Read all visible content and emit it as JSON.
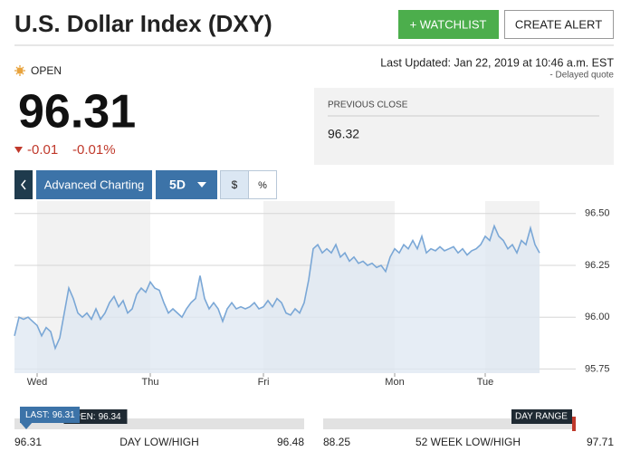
{
  "header": {
    "title": "U.S. Dollar Index (DXY)",
    "watchlist": "+ WATCHLIST",
    "alert": "CREATE ALERT"
  },
  "status": {
    "market": "OPEN",
    "updated": "Last Updated: Jan 22, 2019 at 10:46 a.m. EST",
    "delayed": "- Delayed quote"
  },
  "quote": {
    "price": 96.31,
    "change": -0.01,
    "change_percent": "-0.01%"
  },
  "previous_close": {
    "label": "PREVIOUS CLOSE",
    "value": 96.32
  },
  "toolbar": {
    "advanced": "Advanced Charting",
    "range": "5D",
    "dollar": "$",
    "percent": "%"
  },
  "chart_data": {
    "type": "line",
    "color": "#7aa7d6",
    "fill": "#dde7f1",
    "x": [
      0,
      1,
      2,
      3,
      4,
      5,
      6,
      7,
      8,
      9,
      10,
      11,
      12,
      13,
      14,
      15,
      16,
      17,
      18,
      19,
      20,
      21,
      22,
      23,
      24,
      25,
      26,
      27,
      28,
      29,
      30,
      31,
      32,
      33,
      34,
      35,
      36,
      37,
      38,
      39,
      40,
      41,
      42,
      43,
      44,
      45,
      46,
      47,
      48,
      49,
      50,
      51,
      52,
      53,
      54,
      55,
      56,
      57,
      58,
      59,
      60,
      61,
      62,
      63,
      64,
      65,
      66,
      67,
      68,
      69,
      70,
      71,
      72,
      73,
      74,
      75,
      76,
      77,
      78,
      79,
      80,
      81,
      82,
      83,
      84,
      85,
      86,
      87,
      88,
      89,
      90,
      91,
      92,
      93,
      94,
      95,
      96,
      97,
      98,
      99,
      100,
      101,
      102,
      103,
      104,
      105,
      106,
      107,
      108,
      109,
      110,
      111,
      112,
      113,
      114,
      115,
      116
    ],
    "values": [
      95.91,
      96.0,
      95.99,
      96.0,
      95.98,
      95.96,
      95.91,
      95.95,
      95.93,
      95.85,
      95.9,
      96.02,
      96.14,
      96.09,
      96.02,
      96.0,
      96.02,
      95.99,
      96.04,
      95.99,
      96.02,
      96.07,
      96.1,
      96.05,
      96.08,
      96.02,
      96.04,
      96.11,
      96.14,
      96.12,
      96.17,
      96.14,
      96.13,
      96.07,
      96.02,
      96.04,
      96.02,
      96.0,
      96.04,
      96.07,
      96.09,
      96.2,
      96.09,
      96.04,
      96.07,
      96.04,
      95.98,
      96.04,
      96.07,
      96.04,
      96.05,
      96.04,
      96.05,
      96.07,
      96.04,
      96.05,
      96.08,
      96.05,
      96.09,
      96.07,
      96.02,
      96.01,
      96.04,
      96.02,
      96.07,
      96.18,
      96.33,
      96.35,
      96.31,
      96.33,
      96.31,
      96.35,
      96.29,
      96.31,
      96.27,
      96.29,
      96.26,
      96.27,
      96.25,
      96.26,
      96.24,
      96.25,
      96.22,
      96.29,
      96.33,
      96.31,
      96.35,
      96.33,
      96.37,
      96.33,
      96.39,
      96.31,
      96.33,
      96.32,
      96.34,
      96.32,
      96.33,
      96.34,
      96.31,
      96.33,
      96.3,
      96.32,
      96.33,
      96.35,
      96.39,
      96.37,
      96.44,
      96.39,
      96.37,
      96.33,
      96.35,
      96.31,
      96.37,
      96.35,
      96.43,
      96.35,
      96.31
    ],
    "xlim": [
      0,
      124
    ],
    "xticks": [
      {
        "value": 5,
        "label": "Wed"
      },
      {
        "value": 30,
        "label": "Thu"
      },
      {
        "value": 55,
        "label": "Fri"
      },
      {
        "value": 84,
        "label": "Mon"
      },
      {
        "value": 104,
        "label": "Tue"
      }
    ],
    "ylim": [
      95.73,
      96.56
    ],
    "yticks": [
      {
        "value": 95.75,
        "label": "95.75"
      },
      {
        "value": 96,
        "label": "96.00"
      },
      {
        "value": 96.25,
        "label": "96.25"
      },
      {
        "value": 96.5,
        "label": "96.50"
      }
    ],
    "grid": true
  },
  "ranges": {
    "day": {
      "label": "DAY LOW/HIGH",
      "low": 96.31,
      "high": 96.48,
      "last_label": "LAST:",
      "last": 96.31,
      "open_label": "OPEN:",
      "open": 96.34
    },
    "week52": {
      "label": "52 WEEK LOW/HIGH",
      "low": 88.25,
      "high": 97.71,
      "marker": "DAY RANGE"
    }
  }
}
